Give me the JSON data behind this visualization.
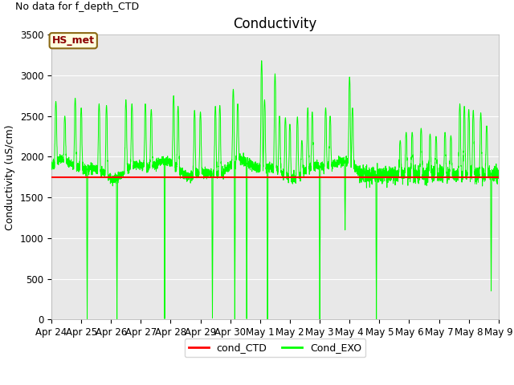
{
  "title": "Conductivity",
  "ylabel": "Conductivity (uS/cm)",
  "no_data_text": "No data for f_depth_CTD",
  "station_label": "HS_met",
  "ylim": [
    0,
    3500
  ],
  "yticks": [
    0,
    500,
    1000,
    1500,
    2000,
    2500,
    3000,
    3500
  ],
  "cond_CTD_value": 1750,
  "cond_CTD_color": "#FF0000",
  "cond_EXO_color": "#00FF00",
  "bg_color": "#E8E8E8",
  "xtick_labels": [
    "Apr 24",
    "Apr 25",
    "Apr 26",
    "Apr 27",
    "Apr 28",
    "Apr 29",
    "Apr 30",
    "May 1",
    "May 2",
    "May 3",
    "May 4",
    "May 5",
    "May 6",
    "May 7",
    "May 8",
    "May 9"
  ],
  "title_fontsize": 12,
  "label_fontsize": 9,
  "tick_fontsize": 8.5,
  "fig_width": 6.4,
  "fig_height": 4.8,
  "dpi": 100
}
